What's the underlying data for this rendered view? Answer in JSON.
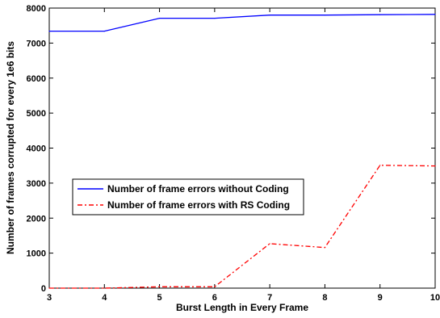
{
  "chart_data": {
    "type": "line",
    "title": "",
    "xlabel": "Burst Length in Every Frame",
    "ylabel": "Number of frames corrupted for every 1e6 bits",
    "xlim": [
      3,
      10
    ],
    "ylim": [
      0,
      8000
    ],
    "xticks": [
      3,
      4,
      5,
      6,
      7,
      8,
      9,
      10
    ],
    "yticks": [
      0,
      1000,
      2000,
      3000,
      4000,
      5000,
      6000,
      7000,
      8000
    ],
    "grid": false,
    "legend_position": "center-left",
    "x": [
      3,
      4,
      5,
      6,
      7,
      8,
      9,
      10
    ],
    "series": [
      {
        "name": "Number of frame errors without Coding",
        "color": "#0000ff",
        "line_style": "solid",
        "values": [
          7340,
          7340,
          7710,
          7710,
          7800,
          7800,
          7810,
          7820
        ]
      },
      {
        "name": "Number of frame errors with RS Coding",
        "color": "#ff0000",
        "line_style": "dash-dot",
        "values": [
          0,
          0,
          40,
          40,
          1270,
          1160,
          3510,
          3490
        ]
      }
    ]
  }
}
